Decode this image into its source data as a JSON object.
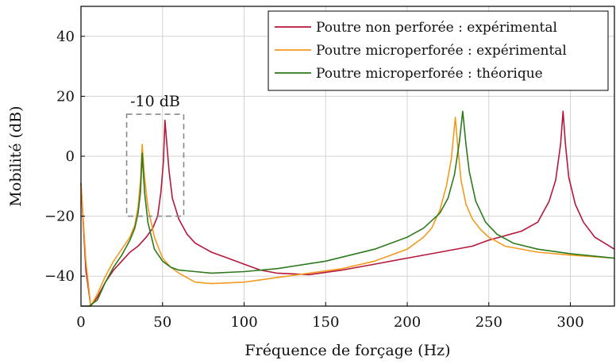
{
  "chart_data": {
    "type": "line",
    "xlabel": "Fréquence de forçage (Hz)",
    "ylabel": "Mobilité (dB)",
    "xlim": [
      0,
      327
    ],
    "ylim": [
      -50,
      50
    ],
    "xticks": [
      0,
      50,
      100,
      150,
      200,
      250,
      300
    ],
    "yticks": [
      -40,
      -20,
      0,
      20,
      40
    ],
    "grid": true,
    "legend_position": "top-right",
    "annotation": {
      "text": "-10 dB",
      "box_x": [
        28,
        63
      ],
      "box_y": [
        -20,
        14
      ]
    },
    "series": [
      {
        "name": "Poutre non perforée : expérimental",
        "color": "#b5173a",
        "x": [
          0,
          3,
          6,
          10,
          15,
          20,
          25,
          30,
          35,
          40,
          44,
          47,
          49,
          50.5,
          51.5,
          52.5,
          54,
          56,
          60,
          65,
          70,
          80,
          90,
          100,
          110,
          120,
          140,
          160,
          180,
          200,
          220,
          240,
          250,
          260,
          270,
          280,
          287,
          291,
          294,
          295.5,
          297,
          299,
          303,
          308,
          315,
          327
        ],
        "y": [
          -9,
          -38,
          -50,
          -47,
          -42,
          -38,
          -35,
          -32,
          -30,
          -27,
          -24,
          -20,
          -12,
          -2,
          12,
          5,
          -5,
          -14,
          -21,
          -26,
          -29,
          -32,
          -34,
          -36,
          -38,
          -39,
          -39.5,
          -38,
          -36,
          -34,
          -32,
          -30,
          -28,
          -26.5,
          -25,
          -22,
          -15,
          -8,
          4,
          15,
          4,
          -7,
          -16,
          -22,
          -27,
          -31
        ]
      },
      {
        "name": "Poutre microperforée : expérimental",
        "color": "#f39a1e",
        "x": [
          0,
          3,
          6,
          10,
          15,
          20,
          25,
          30,
          33,
          35,
          36.5,
          37.5,
          39,
          41,
          45,
          50,
          55,
          60,
          70,
          80,
          100,
          120,
          140,
          160,
          180,
          190,
          200,
          210,
          215,
          220,
          224,
          227,
          229.5,
          231,
          233,
          236,
          240,
          245,
          250,
          260,
          280,
          300,
          327
        ],
        "y": [
          -9,
          -35,
          -50,
          -46,
          -40,
          -35,
          -31,
          -27,
          -23,
          -17,
          -8,
          4,
          -7,
          -17,
          -27,
          -34,
          -37,
          -39,
          -42,
          -42.5,
          -42,
          -40.5,
          -39,
          -37.5,
          -35,
          -33,
          -31,
          -27,
          -24,
          -18,
          -10,
          -1,
          13,
          3,
          -8,
          -16,
          -21,
          -24.5,
          -27,
          -30,
          -32,
          -33,
          -34
        ]
      },
      {
        "name": "Poutre microperforée : théorique",
        "color": "#2c7a1c",
        "x": [
          0,
          5,
          10,
          15,
          20,
          25,
          30,
          33,
          35,
          36.5,
          37.5,
          39,
          41,
          45,
          50,
          55,
          60,
          70,
          80,
          100,
          120,
          150,
          180,
          200,
          210,
          220,
          225,
          229,
          232,
          234,
          236,
          238,
          242,
          248,
          255,
          265,
          280,
          300,
          327
        ],
        "y": [
          -50,
          -50,
          -48,
          -42,
          -37,
          -33,
          -28,
          -24,
          -19,
          -12,
          1,
          -12,
          -22,
          -31,
          -35,
          -37,
          -38,
          -38.5,
          -39,
          -38.5,
          -37.5,
          -35,
          -31,
          -27,
          -24,
          -19,
          -14,
          -6,
          5,
          15,
          4,
          -5,
          -15,
          -22,
          -26,
          -29,
          -31,
          -32.5,
          -34
        ]
      }
    ]
  }
}
